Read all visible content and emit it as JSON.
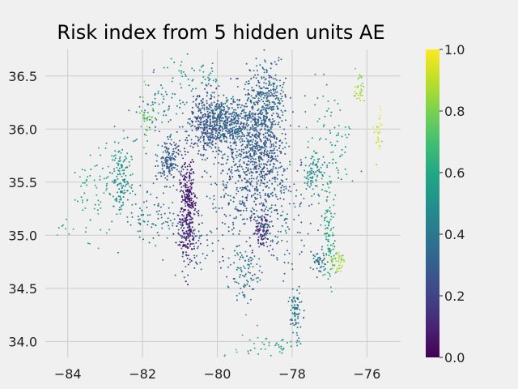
{
  "chart_data": {
    "type": "scatter",
    "title": "Risk index from 5 hidden units AE",
    "xlabel": "",
    "ylabel": "",
    "xlim": [
      -84.6,
      -75.1
    ],
    "ylim": [
      33.85,
      36.75
    ],
    "x_ticks": [
      -84,
      -82,
      -80,
      -78,
      -76
    ],
    "x_tick_labels": [
      "−84",
      "−82",
      "−80",
      "−78",
      "−76"
    ],
    "y_ticks": [
      34.0,
      34.5,
      35.0,
      35.5,
      36.0,
      36.5
    ],
    "y_tick_labels": [
      "34.0",
      "34.5",
      "35.0",
      "35.5",
      "36.0",
      "36.5"
    ],
    "grid": true,
    "colorbar": {
      "colormap": "viridis",
      "range": [
        0.0,
        1.0
      ],
      "ticks": [
        0.0,
        0.2,
        0.4,
        0.6,
        0.8,
        1.0
      ],
      "tick_labels": [
        "0.0",
        "0.2",
        "0.4",
        "0.6",
        "0.8",
        "1.0"
      ]
    },
    "clusters": [
      {
        "x": -78.9,
        "y": 35.8,
        "sx": 0.35,
        "sy": 0.3,
        "n": 700,
        "v": 0.28
      },
      {
        "x": -79.8,
        "y": 36.05,
        "sx": 0.4,
        "sy": 0.12,
        "n": 500,
        "v": 0.32
      },
      {
        "x": -78.7,
        "y": 36.3,
        "sx": 0.25,
        "sy": 0.2,
        "n": 250,
        "v": 0.35
      },
      {
        "x": -80.3,
        "y": 36.05,
        "sx": 0.2,
        "sy": 0.15,
        "n": 200,
        "v": 0.25
      },
      {
        "x": -80.8,
        "y": 35.25,
        "sx": 0.12,
        "sy": 0.25,
        "n": 350,
        "v": 0.1
      },
      {
        "x": -81.3,
        "y": 35.7,
        "sx": 0.15,
        "sy": 0.1,
        "n": 150,
        "v": 0.3
      },
      {
        "x": -78.8,
        "y": 35.05,
        "sx": 0.12,
        "sy": 0.08,
        "n": 100,
        "v": 0.15
      },
      {
        "x": -77.9,
        "y": 34.25,
        "sx": 0.08,
        "sy": 0.12,
        "n": 80,
        "v": 0.4
      },
      {
        "x": -79.3,
        "y": 34.65,
        "sx": 0.2,
        "sy": 0.12,
        "n": 90,
        "v": 0.4
      },
      {
        "x": -77.4,
        "y": 35.6,
        "sx": 0.15,
        "sy": 0.1,
        "n": 80,
        "v": 0.5
      },
      {
        "x": -77.0,
        "y": 35.05,
        "sx": 0.08,
        "sy": 0.25,
        "n": 100,
        "v": 0.6
      },
      {
        "x": -77.3,
        "y": 34.75,
        "sx": 0.12,
        "sy": 0.06,
        "n": 50,
        "v": 0.4
      },
      {
        "x": -76.8,
        "y": 34.75,
        "sx": 0.1,
        "sy": 0.05,
        "n": 40,
        "v": 0.85
      },
      {
        "x": -82.6,
        "y": 35.5,
        "sx": 0.15,
        "sy": 0.2,
        "n": 150,
        "v": 0.5
      },
      {
        "x": -83.3,
        "y": 35.4,
        "sx": 0.3,
        "sy": 0.2,
        "n": 60,
        "v": 0.6
      },
      {
        "x": -81.5,
        "y": 36.2,
        "sx": 0.4,
        "sy": 0.2,
        "n": 80,
        "v": 0.45
      },
      {
        "x": -81.9,
        "y": 36.15,
        "sx": 0.1,
        "sy": 0.12,
        "n": 30,
        "v": 0.75
      },
      {
        "x": -76.2,
        "y": 36.35,
        "sx": 0.08,
        "sy": 0.1,
        "n": 30,
        "v": 0.85
      },
      {
        "x": -75.7,
        "y": 36.0,
        "sx": 0.06,
        "sy": 0.12,
        "n": 25,
        "v": 0.95
      },
      {
        "x": -78.3,
        "y": 35.2,
        "sx": 0.4,
        "sy": 0.25,
        "n": 150,
        "v": 0.35
      },
      {
        "x": -79.6,
        "y": 35.4,
        "sx": 0.3,
        "sy": 0.3,
        "n": 150,
        "v": 0.3
      },
      {
        "x": -81.7,
        "y": 35.2,
        "sx": 0.3,
        "sy": 0.15,
        "n": 80,
        "v": 0.4
      },
      {
        "x": -77.0,
        "y": 35.9,
        "sx": 0.35,
        "sy": 0.25,
        "n": 80,
        "v": 0.55
      },
      {
        "x": -80.6,
        "y": 34.9,
        "sx": 0.3,
        "sy": 0.15,
        "n": 60,
        "v": 0.3
      },
      {
        "x": -78.4,
        "y": 33.95,
        "sx": 0.3,
        "sy": 0.05,
        "n": 30,
        "v": 0.6
      },
      {
        "x": -79.2,
        "y": 34.0,
        "sx": 0.3,
        "sy": 0.15,
        "n": 20,
        "v": 0.65
      },
      {
        "x": -84.1,
        "y": 35.07,
        "sx": 0.1,
        "sy": 0.05,
        "n": 8,
        "v": 0.65
      },
      {
        "x": -80.6,
        "y": 36.5,
        "sx": 0.5,
        "sy": 0.08,
        "n": 50,
        "v": 0.5
      }
    ]
  }
}
